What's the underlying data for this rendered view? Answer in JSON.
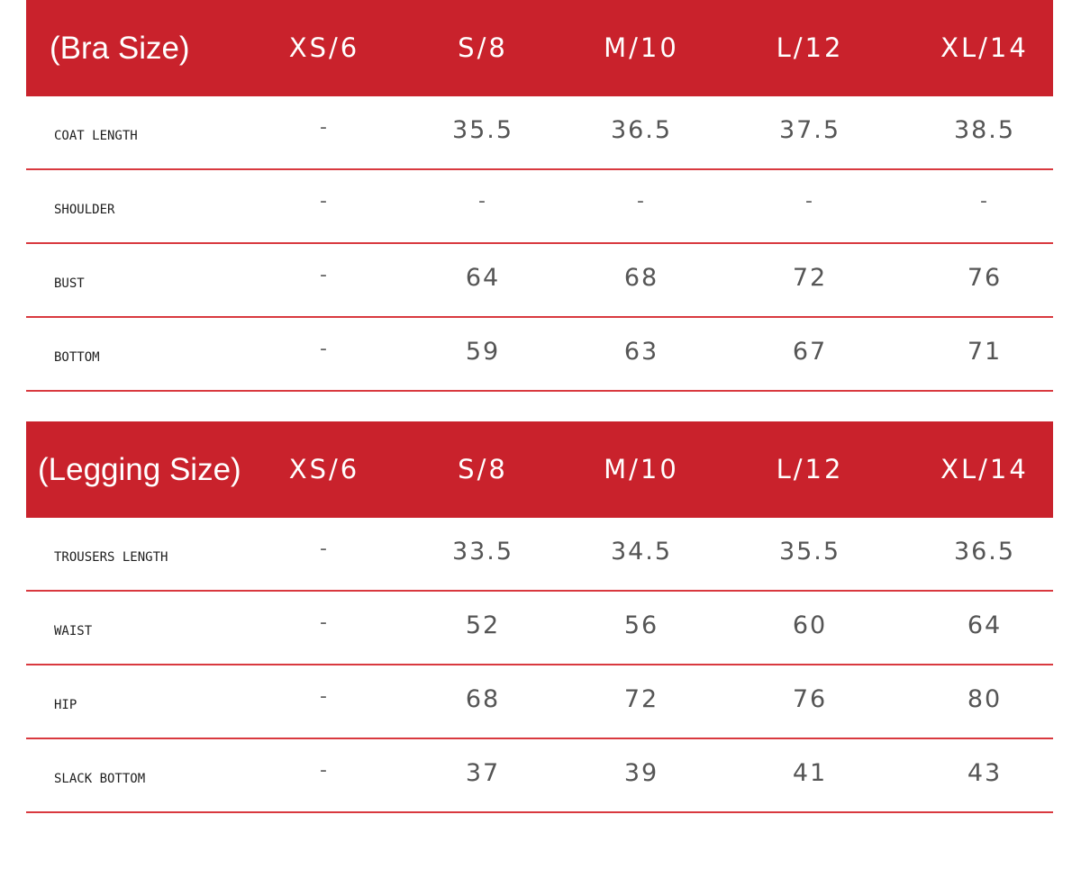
{
  "bra": {
    "title": "(Bra Size)",
    "sizes": [
      "XS/6",
      "S/8",
      "M/10",
      "L/12",
      "XL/14"
    ],
    "rows": [
      {
        "label": "COAT LENGTH",
        "values": [
          "-",
          "35.5",
          "36.5",
          "37.5",
          "38.5"
        ]
      },
      {
        "label": "SHOULDER",
        "values": [
          "-",
          "-",
          "-",
          "-",
          "-"
        ]
      },
      {
        "label": "BUST",
        "values": [
          "-",
          "64",
          "68",
          "72",
          "76"
        ]
      },
      {
        "label": "BOTTOM",
        "values": [
          "-",
          "59",
          "63",
          "67",
          "71"
        ]
      }
    ]
  },
  "legging": {
    "title": "(Legging Size)",
    "sizes": [
      "XS/6",
      "S/8",
      "M/10",
      "L/12",
      "XL/14"
    ],
    "rows": [
      {
        "label": "TROUSERS LENGTH",
        "values": [
          "-",
          "33.5",
          "34.5",
          "35.5",
          "36.5"
        ]
      },
      {
        "label": "WAIST",
        "values": [
          "-",
          "52",
          "56",
          "60",
          "64"
        ]
      },
      {
        "label": "HIP",
        "values": [
          "-",
          "68",
          "72",
          "76",
          "80"
        ]
      },
      {
        "label": "SLACK BOTTOM",
        "values": [
          "-",
          "37",
          "39",
          "41",
          "43"
        ]
      }
    ]
  },
  "colors": {
    "header_bg": "#c9222c",
    "row_divider": "#d9393f"
  }
}
